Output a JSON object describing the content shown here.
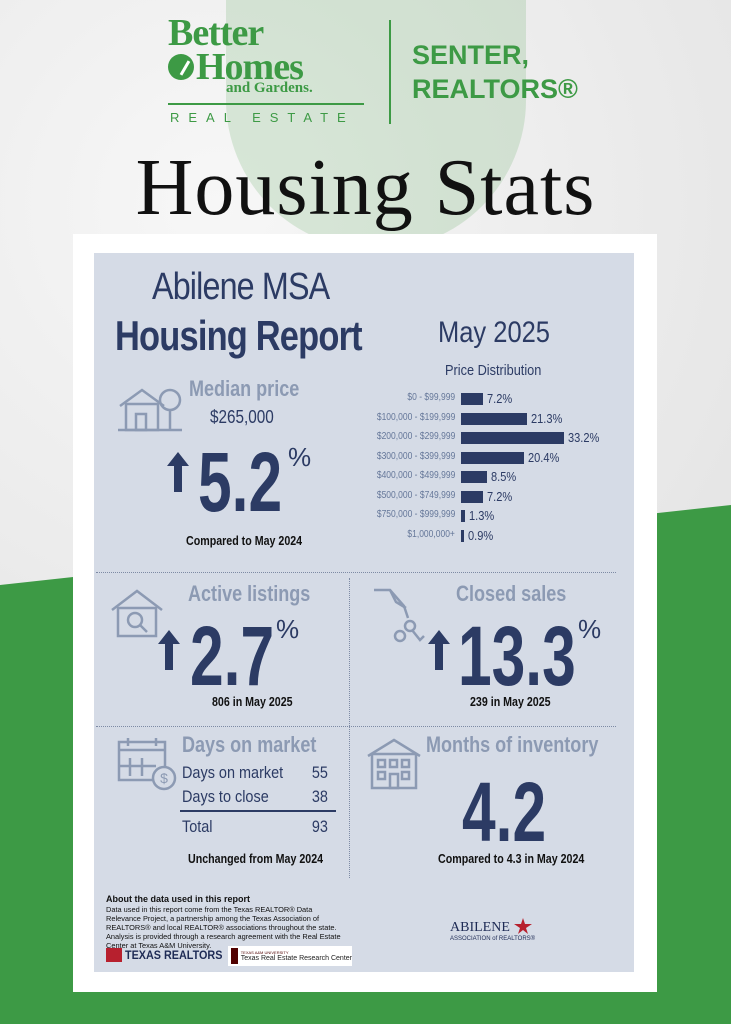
{
  "brand": {
    "line1": "Better",
    "line2": "Homes",
    "line3": "and Gardens.",
    "line4": "REAL ESTATE",
    "partner_line1": "SENTER,",
    "partner_line2": "REALTORS®"
  },
  "page_title": "Housing Stats",
  "report": {
    "region": "Abilene MSA",
    "heading": "Housing Report",
    "month": "May 2025"
  },
  "price_distribution": {
    "title": "Price Distribution",
    "rows": [
      {
        "label": "$0 - $99,999",
        "value": "7.2%",
        "pct": 7.2
      },
      {
        "label": "$100,000 - $199,999",
        "value": "21.3%",
        "pct": 21.3
      },
      {
        "label": "$200,000 - $299,999",
        "value": "33.2%",
        "pct": 33.2
      },
      {
        "label": "$300,000 - $399,999",
        "value": "20.4%",
        "pct": 20.4
      },
      {
        "label": "$400,000 - $499,999",
        "value": "8.5%",
        "pct": 8.5
      },
      {
        "label": "$500,000 - $749,999",
        "value": "7.2%",
        "pct": 7.2
      },
      {
        "label": "$750,000 - $999,999",
        "value": "1.3%",
        "pct": 1.3
      },
      {
        "label": "$1,000,000+",
        "value": "0.9%",
        "pct": 0.9
      }
    ]
  },
  "median": {
    "title": "Median price",
    "price": "$265,000",
    "change": "5.2",
    "pct_sign": "%",
    "caption": "Compared to May 2024"
  },
  "active": {
    "title": "Active listings",
    "change": "2.7",
    "pct_sign": "%",
    "caption": "806 in May 2025"
  },
  "closed": {
    "title": "Closed sales",
    "change": "13.3",
    "pct_sign": "%",
    "caption": "239 in May 2025"
  },
  "dom": {
    "title": "Days on market",
    "row1_label": "Days on market",
    "row1_value": "55",
    "row2_label": "Days to close",
    "row2_value": "38",
    "total_label": "Total",
    "total_value": "93",
    "caption": "Unchanged from May 2024"
  },
  "inventory": {
    "title": "Months of inventory",
    "value": "4.2",
    "caption": "Compared to 4.3 in May 2024"
  },
  "about": {
    "title": "About the data used in this report",
    "body": "Data used in this report come from the Texas REALTOR® Data Relevance Project, a partnership among the Texas Association of REALTORS® and local REALTOR® associations throughout the state. Analysis is provided through a research agreement with the Real Estate Center at Texas A&M University."
  },
  "footer": {
    "texas_realtors": "TEXAS REALTORS",
    "tamu_small": "TEXAS A&M UNIVERSITY",
    "tamu_center": "Texas Real Estate Research Center",
    "abilene_line1": "ABILENE",
    "abilene_line2": "ASSOCIATION of REALTORS®"
  },
  "colors": {
    "navy": "#2c3b64",
    "panel": "#d5dbe6",
    "green": "#3d9a45",
    "muted": "#8c9ab3"
  }
}
